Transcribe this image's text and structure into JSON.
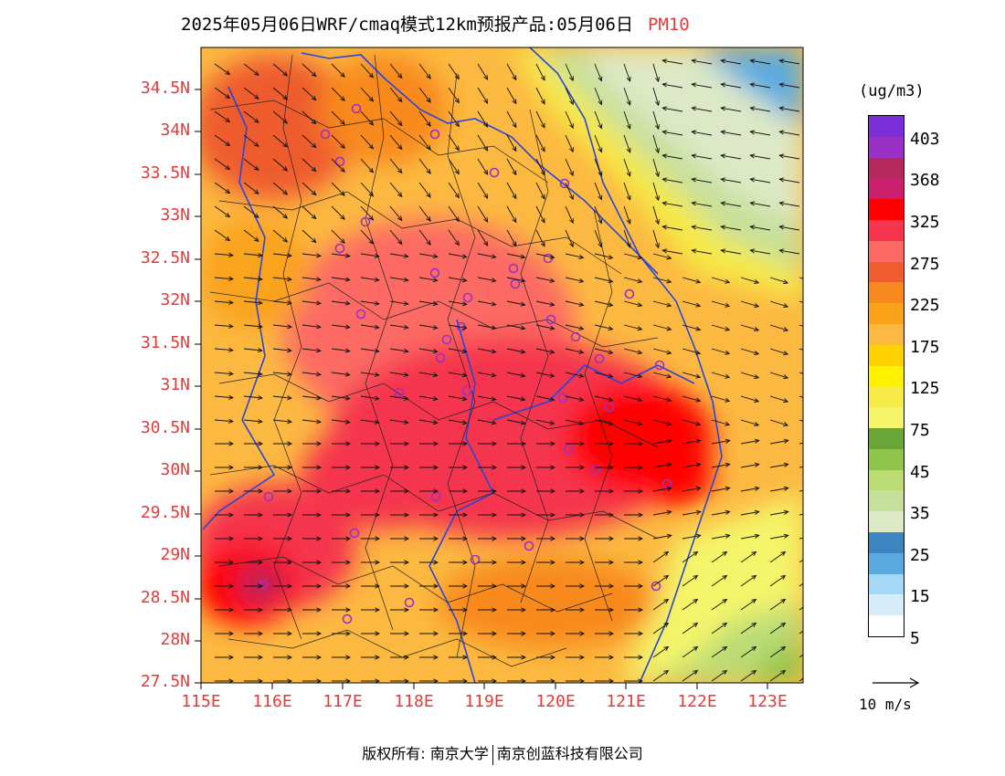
{
  "header": {
    "title": "2025年05月06日WRF/cmaq模式12km预报产品:05月06日",
    "pollutant": "PM10"
  },
  "map": {
    "lat_labels": [
      "34.5N",
      "34N",
      "33.5N",
      "33N",
      "32.5N",
      "32N",
      "31.5N",
      "31N",
      "30.5N",
      "30N",
      "29.5N",
      "29N",
      "28.5N",
      "28N",
      "27.5N"
    ],
    "lon_labels": [
      "115E",
      "116E",
      "117E",
      "118E",
      "119E",
      "120E",
      "121E",
      "122E",
      "123E"
    ],
    "extent": {
      "lon_min": 115,
      "lon_max": 123.5,
      "lat_min": 27.5,
      "lat_max": 35
    }
  },
  "legend": {
    "unit": "(ug/m3)",
    "colors": [
      "#ffffff",
      "#d6ecf8",
      "#a4d8f5",
      "#5aaae0",
      "#3d85c0",
      "#dde9c6",
      "#c6df9a",
      "#bcdc76",
      "#8fc54b",
      "#6aa637",
      "#f4f56a",
      "#f6ea47",
      "#fff200",
      "#fdd200",
      "#fcb941",
      "#faa31a",
      "#f8891f",
      "#ee5c2f",
      "#fc6a63",
      "#f5344e",
      "#ff0000",
      "#cc1f6d",
      "#b4285b",
      "#9b30c6",
      "#7b2fd8"
    ],
    "labels": [
      "5",
      "15",
      "25",
      "35",
      "45",
      "75",
      "125",
      "175",
      "225",
      "275",
      "325",
      "368",
      "403"
    ],
    "wind_reference": "10 m/s"
  },
  "footer": {
    "left": "版权所有: 南京大学",
    "right": "南京创蓝科技有限公司"
  }
}
